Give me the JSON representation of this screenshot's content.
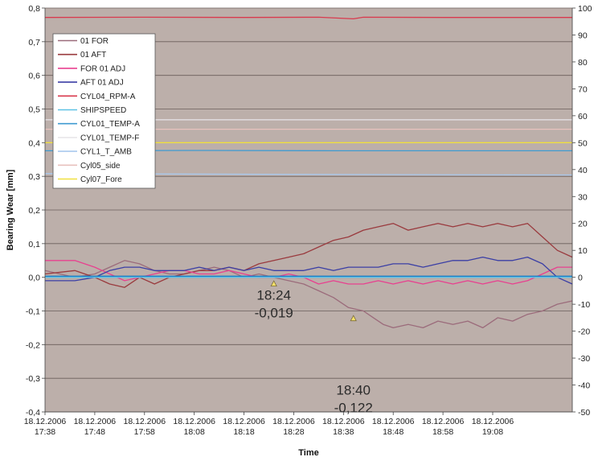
{
  "chart_data": {
    "type": "line",
    "xlabel": "Time",
    "ylabel": "Bearing Wear [mm]",
    "ylim": [
      -0.4,
      0.8
    ],
    "y2lim": [
      -50,
      100
    ],
    "yticks": [
      "-0,4",
      "-0,3",
      "-0,2",
      "-0,1",
      "0,0",
      "0,1",
      "0,2",
      "0,3",
      "0,4",
      "0,5",
      "0,6",
      "0,7",
      "0,8"
    ],
    "y2ticks": [
      "-50",
      "-40",
      "-30",
      "-20",
      "-10",
      "0",
      "10",
      "20",
      "30",
      "40",
      "50",
      "60",
      "70",
      "80",
      "90",
      "100"
    ],
    "xticks": [
      {
        "date": "18.12.2006",
        "time": "17:38"
      },
      {
        "date": "18.12.2006",
        "time": "17:48"
      },
      {
        "date": "18.12.2006",
        "time": "17:58"
      },
      {
        "date": "18.12.2006",
        "time": "18:08"
      },
      {
        "date": "18.12.2006",
        "time": "18:18"
      },
      {
        "date": "18.12.2006",
        "time": "18:28"
      },
      {
        "date": "18.12.2006",
        "time": "18:38"
      },
      {
        "date": "18.12.2006",
        "time": "18:48"
      },
      {
        "date": "18.12.2006",
        "time": "18:58"
      },
      {
        "date": "18.12.2006",
        "time": "19:08"
      }
    ],
    "x_end_minutes": 106,
    "plot_background": "#bcafaa",
    "grid": true,
    "legend_position": "top-left",
    "series": [
      {
        "name": "01 FOR",
        "color": "#9b6b7b",
        "axis": "left",
        "points": [
          [
            0,
            0.02
          ],
          [
            6,
            0.0
          ],
          [
            10,
            0.01
          ],
          [
            13,
            0.03
          ],
          [
            16,
            0.05
          ],
          [
            19,
            0.04
          ],
          [
            22,
            0.02
          ],
          [
            25,
            0.01
          ],
          [
            28,
            0.01
          ],
          [
            31,
            0.02
          ],
          [
            34,
            0.03
          ],
          [
            37,
            0.02
          ],
          [
            40,
            0.0
          ],
          [
            43,
            0.01
          ],
          [
            46,
            0.0
          ],
          [
            49,
            -0.01
          ],
          [
            52,
            -0.02
          ],
          [
            55,
            -0.04
          ],
          [
            58,
            -0.06
          ],
          [
            61,
            -0.09
          ],
          [
            64,
            -0.1
          ],
          [
            66,
            -0.12
          ],
          [
            68,
            -0.14
          ],
          [
            70,
            -0.15
          ],
          [
            73,
            -0.14
          ],
          [
            76,
            -0.15
          ],
          [
            79,
            -0.13
          ],
          [
            82,
            -0.14
          ],
          [
            85,
            -0.13
          ],
          [
            88,
            -0.15
          ],
          [
            91,
            -0.12
          ],
          [
            94,
            -0.13
          ],
          [
            97,
            -0.11
          ],
          [
            100,
            -0.1
          ],
          [
            103,
            -0.08
          ],
          [
            106,
            -0.07
          ]
        ]
      },
      {
        "name": "01 AFT",
        "color": "#9a3a3e",
        "axis": "left",
        "points": [
          [
            0,
            0.01
          ],
          [
            6,
            0.02
          ],
          [
            10,
            0.0
          ],
          [
            13,
            -0.02
          ],
          [
            16,
            -0.03
          ],
          [
            19,
            0.0
          ],
          [
            22,
            -0.02
          ],
          [
            25,
            0.0
          ],
          [
            28,
            0.01
          ],
          [
            31,
            0.02
          ],
          [
            34,
            0.02
          ],
          [
            37,
            0.03
          ],
          [
            40,
            0.02
          ],
          [
            43,
            0.04
          ],
          [
            46,
            0.05
          ],
          [
            49,
            0.06
          ],
          [
            52,
            0.07
          ],
          [
            55,
            0.09
          ],
          [
            58,
            0.11
          ],
          [
            61,
            0.12
          ],
          [
            64,
            0.14
          ],
          [
            67,
            0.15
          ],
          [
            70,
            0.16
          ],
          [
            73,
            0.14
          ],
          [
            76,
            0.15
          ],
          [
            79,
            0.16
          ],
          [
            82,
            0.15
          ],
          [
            85,
            0.16
          ],
          [
            88,
            0.15
          ],
          [
            91,
            0.16
          ],
          [
            94,
            0.15
          ],
          [
            97,
            0.16
          ],
          [
            100,
            0.12
          ],
          [
            103,
            0.08
          ],
          [
            106,
            0.06
          ]
        ]
      },
      {
        "name": "FOR 01 ADJ",
        "color": "#e8408f",
        "axis": "left",
        "points": [
          [
            0,
            0.05
          ],
          [
            6,
            0.05
          ],
          [
            10,
            0.03
          ],
          [
            13,
            0.01
          ],
          [
            16,
            -0.01
          ],
          [
            19,
            0.0
          ],
          [
            22,
            0.01
          ],
          [
            25,
            0.02
          ],
          [
            28,
            0.02
          ],
          [
            31,
            0.01
          ],
          [
            34,
            0.01
          ],
          [
            37,
            0.02
          ],
          [
            40,
            0.01
          ],
          [
            43,
            0.0
          ],
          [
            46,
            0.0
          ],
          [
            49,
            0.01
          ],
          [
            52,
            0.0
          ],
          [
            55,
            -0.02
          ],
          [
            58,
            -0.01
          ],
          [
            61,
            -0.02
          ],
          [
            64,
            -0.02
          ],
          [
            67,
            -0.01
          ],
          [
            70,
            -0.02
          ],
          [
            73,
            -0.01
          ],
          [
            76,
            -0.02
          ],
          [
            79,
            -0.01
          ],
          [
            82,
            -0.02
          ],
          [
            85,
            -0.01
          ],
          [
            88,
            -0.02
          ],
          [
            91,
            -0.01
          ],
          [
            94,
            -0.02
          ],
          [
            97,
            -0.01
          ],
          [
            100,
            0.01
          ],
          [
            103,
            0.03
          ],
          [
            106,
            0.03
          ]
        ]
      },
      {
        "name": "AFT 01 ADJ",
        "color": "#3b3fa5",
        "axis": "left",
        "points": [
          [
            0,
            -0.01
          ],
          [
            6,
            -0.01
          ],
          [
            10,
            0.0
          ],
          [
            13,
            0.02
          ],
          [
            16,
            0.03
          ],
          [
            19,
            0.03
          ],
          [
            22,
            0.02
          ],
          [
            25,
            0.02
          ],
          [
            28,
            0.02
          ],
          [
            31,
            0.03
          ],
          [
            34,
            0.02
          ],
          [
            37,
            0.03
          ],
          [
            40,
            0.02
          ],
          [
            43,
            0.03
          ],
          [
            46,
            0.02
          ],
          [
            49,
            0.02
          ],
          [
            52,
            0.02
          ],
          [
            55,
            0.03
          ],
          [
            58,
            0.02
          ],
          [
            61,
            0.03
          ],
          [
            64,
            0.03
          ],
          [
            67,
            0.03
          ],
          [
            70,
            0.04
          ],
          [
            73,
            0.04
          ],
          [
            76,
            0.03
          ],
          [
            79,
            0.04
          ],
          [
            82,
            0.05
          ],
          [
            85,
            0.05
          ],
          [
            88,
            0.06
          ],
          [
            91,
            0.05
          ],
          [
            94,
            0.05
          ],
          [
            97,
            0.06
          ],
          [
            100,
            0.04
          ],
          [
            103,
            0.0
          ],
          [
            106,
            -0.02
          ]
        ]
      },
      {
        "name": "CYL04_RPM-A",
        "color": "#d93a4e",
        "axis": "right",
        "points": [
          [
            0,
            96.5
          ],
          [
            20,
            96.6
          ],
          [
            40,
            96.5
          ],
          [
            55,
            96.6
          ],
          [
            62,
            96.0
          ],
          [
            64,
            96.6
          ],
          [
            80,
            96.5
          ],
          [
            106,
            96.5
          ]
        ]
      },
      {
        "name": "SHIPSPEED",
        "color": "#5fc2e6",
        "axis": "right",
        "points": [
          [
            0,
            0.0
          ],
          [
            106,
            0.0
          ]
        ]
      },
      {
        "name": "CYL01_TEMP-A",
        "color": "#3f9bd1",
        "axis": "right",
        "points": [
          [
            0,
            47.0
          ],
          [
            30,
            47.1
          ],
          [
            60,
            47.0
          ],
          [
            106,
            47.0
          ]
        ]
      },
      {
        "name": "CYL01_TEMP-F",
        "color": "#e8e6ea",
        "axis": "right",
        "points": [
          [
            0,
            58.5
          ],
          [
            106,
            58.5
          ]
        ]
      },
      {
        "name": "CYL1_T_AMB",
        "color": "#a9c9ee",
        "axis": "right",
        "points": [
          [
            0,
            38.5
          ],
          [
            50,
            38.2
          ],
          [
            106,
            38.0
          ]
        ]
      },
      {
        "name": "Cyl05_side",
        "color": "#e8c2be",
        "axis": "right",
        "points": [
          [
            0,
            55.0
          ],
          [
            106,
            55.0
          ]
        ]
      },
      {
        "name": "Cyl07_Fore",
        "color": "#f0e040",
        "axis": "right",
        "points": [
          [
            0,
            50.0
          ],
          [
            106,
            50.0
          ]
        ]
      },
      {
        "name": "",
        "color": "#1c7fc5",
        "axis": "right",
        "points": [
          [
            0,
            0.4
          ],
          [
            106,
            0.4
          ]
        ]
      }
    ],
    "annotations": [
      {
        "time": "18:24",
        "value": "-0,019",
        "x": 46,
        "y": -0.019
      },
      {
        "time": "18:40",
        "value": "-0,122",
        "x": 62,
        "y": -0.122
      }
    ]
  }
}
